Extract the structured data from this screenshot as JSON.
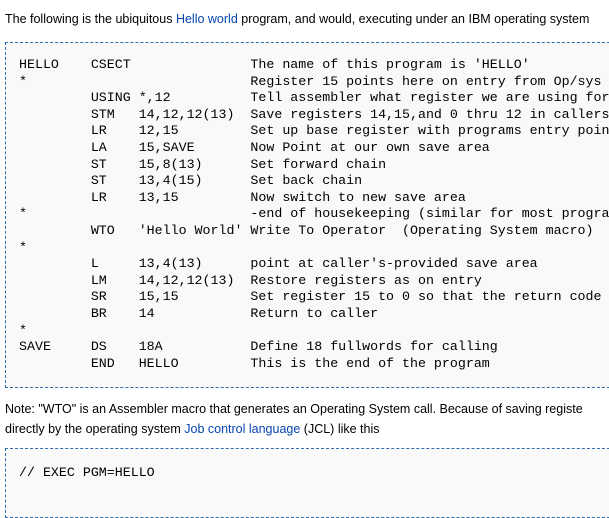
{
  "intro": [
    "The following is the ubiquitous ",
    "Hello world",
    " program, and would, executing under an IBM operating system"
  ],
  "code_block": {
    "lines": [
      "HELLO    CSECT               The name of this program is 'HELLO'",
      "*                            Register 15 points here on entry from Op/sys",
      "         USING *,12          Tell assembler what register we are using for",
      "         STM   14,12,12(13)  Save registers 14,15,and 0 thru 12 in callers",
      "         LR    12,15         Set up base register with programs entry poin",
      "         LA    15,SAVE       Now Point at our own save area",
      "         ST    15,8(13)      Set forward chain",
      "         ST    13,4(15)      Set back chain",
      "         LR    13,15         Now switch to new save area",
      "*                            -end of housekeeping (similar for most progra",
      "         WTO   'Hello World' Write To Operator  (Operating System macro)",
      "*",
      "         L     13,4(13)      point at caller's-provided save area",
      "         LM    14,12,12(13)  Restore registers as on entry",
      "         SR    15,15         Set register 15 to 0 so that the return code",
      "         BR    14            Return to caller",
      "*",
      "SAVE     DS    18A           Define 18 fullwords for calling",
      "         END   HELLO         This is the end of the program"
    ]
  },
  "note": [
    [
      "Note: \"WTO\" is an Assembler macro that generates an Operating System call. Because of saving registe"
    ],
    [
      "directly by the operating system ",
      "Job control language",
      " (JCL) like this"
    ]
  ],
  "jcl_block": {
    "lines": [
      "// EXEC PGM=HELLO"
    ]
  }
}
